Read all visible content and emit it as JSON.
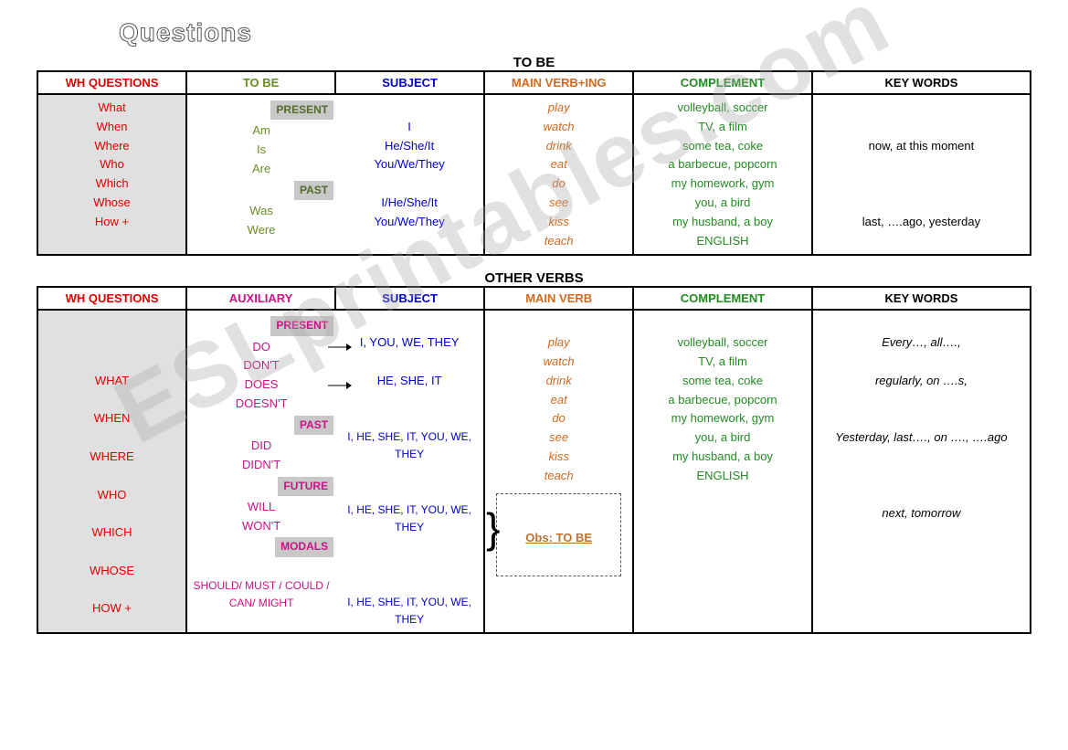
{
  "title": "Questions",
  "watermark": "ESLprintables.com",
  "section1": {
    "title": "TO BE",
    "headers": [
      "WH QUESTIONS",
      "TO BE",
      "SUBJECT",
      "MAIN VERB+ING",
      "COMPLEMENT",
      "KEY WORDS"
    ],
    "wh": [
      "What",
      "When",
      "Where",
      "Who",
      "Which",
      "Whose",
      "How +"
    ],
    "tags": {
      "present": "PRESENT",
      "past": "PAST"
    },
    "tobe_present": [
      "Am",
      "Is",
      "Are"
    ],
    "tobe_past": [
      "Was",
      "Were"
    ],
    "subj_present": [
      "I",
      "He/She/It",
      "You/We/They"
    ],
    "subj_past": [
      "I/He/She/It",
      "You/We/They"
    ],
    "verbs": [
      "play",
      "watch",
      "drink",
      "eat",
      "do",
      "see",
      "kiss",
      "teach"
    ],
    "complement": [
      "volleyball, soccer",
      "TV, a film",
      "some tea, coke",
      "a barbecue, popcorn",
      "my homework, gym",
      "you, a bird",
      "my husband, a boy",
      "ENGLISH"
    ],
    "key_present": "now, at this moment",
    "key_past": "last, ….ago, yesterday"
  },
  "section2": {
    "title": "OTHER VERBS",
    "headers": [
      "WH QUESTIONS",
      "AUXILIARY",
      "SUBJECT",
      "MAIN VERB",
      "COMPLEMENT",
      "KEY WORDS"
    ],
    "wh": [
      "WHAT",
      "WHEN",
      "WHERE",
      "WHO",
      "WHICH",
      "WHOSE",
      "HOW +"
    ],
    "tags": {
      "present": "PRESENT",
      "past": "PAST",
      "future": "FUTURE",
      "modals": "MODALS"
    },
    "aux_present": [
      "DO",
      "DON'T",
      "DOES",
      "DOESN'T"
    ],
    "aux_past": [
      "DID",
      "DIDN'T"
    ],
    "aux_future": [
      "WILL",
      "WON'T"
    ],
    "aux_modals": "SHOULD/ MUST / COULD / CAN/ MIGHT",
    "subj_present1": "I, YOU, WE, THEY",
    "subj_present2": "HE, SHE, IT",
    "subj_all": "I, HE, SHE, IT, YOU, WE, THEY",
    "verbs": [
      "play",
      "watch",
      "drink",
      "eat",
      "do",
      "see",
      "kiss",
      "teach"
    ],
    "obs": "Obs: TO BE",
    "complement": [
      "volleyball, soccer",
      "TV, a film",
      "some tea, coke",
      "a barbecue, popcorn",
      "my homework, gym",
      "you, a bird",
      "my husband, a boy",
      "ENGLISH"
    ],
    "key": [
      "Every…, all….,",
      "regularly, on ….s,",
      "Yesterday, last…., on …., ….ago",
      "next, tomorrow"
    ]
  },
  "colors": {
    "wh": "#e00000",
    "tobe": "#6b8e23",
    "aux": "#c71585",
    "subject": "#0000cd",
    "verb": "#d2691e",
    "complement": "#228b22",
    "keywords": "#000000",
    "tag_bg": "#c8c8c8",
    "gray_bg": "#e0e0e0",
    "border": "#000000",
    "bg": "#ffffff"
  }
}
